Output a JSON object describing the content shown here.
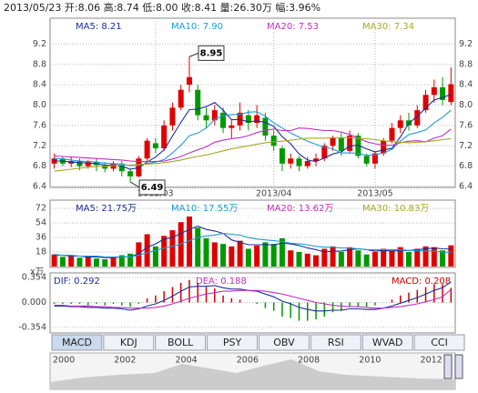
{
  "header": "2013/05/23 开:8.06 高:8.74 低:8.00 收:8.41 量:26.30万 幅:3.96%",
  "chart_data": [
    {
      "type": "candlestick",
      "legend": [
        {
          "label": "MA5: 8.21",
          "color": "#1a2f9a"
        },
        {
          "label": "MA10: 7.90",
          "color": "#1e9ad6"
        },
        {
          "label": "MA20: 7.53",
          "color": "#c030c0"
        },
        {
          "label": "MA30: 7.34",
          "color": "#a8a820"
        }
      ],
      "categories": [
        null,
        null,
        null,
        null,
        null,
        null,
        null,
        null,
        null,
        null,
        null,
        null,
        "2013/03",
        null,
        null,
        null,
        null,
        null,
        null,
        null,
        null,
        null,
        null,
        null,
        null,
        null,
        "2013/04",
        null,
        null,
        null,
        null,
        null,
        null,
        null,
        null,
        null,
        null,
        null,
        "2013/05",
        null,
        null,
        null,
        null,
        null,
        null,
        null,
        null,
        null
      ],
      "open": [
        6.85,
        6.95,
        6.85,
        6.9,
        6.8,
        6.88,
        6.82,
        6.75,
        6.85,
        6.7,
        6.6,
        6.95,
        7.25,
        7.15,
        7.6,
        7.95,
        8.4,
        8.3,
        7.8,
        7.7,
        7.85,
        7.55,
        7.6,
        7.8,
        7.65,
        7.75,
        7.4,
        7.15,
        6.85,
        6.95,
        6.8,
        6.9,
        6.95,
        7.2,
        7.35,
        7.1,
        7.4,
        7.0,
        6.85,
        7.05,
        7.3,
        7.55,
        7.7,
        7.6,
        7.9,
        8.2,
        8.35,
        8.06
      ],
      "close": [
        6.95,
        6.85,
        6.9,
        6.8,
        6.88,
        6.82,
        6.75,
        6.85,
        6.7,
        6.6,
        6.95,
        7.3,
        7.15,
        7.6,
        7.95,
        8.3,
        8.55,
        7.8,
        7.7,
        7.9,
        7.55,
        7.6,
        7.85,
        7.65,
        7.8,
        7.4,
        7.2,
        6.85,
        6.95,
        6.8,
        6.9,
        6.95,
        7.2,
        7.35,
        7.1,
        7.4,
        7.0,
        6.85,
        7.05,
        7.3,
        7.55,
        7.7,
        7.6,
        7.9,
        8.2,
        8.35,
        8.1,
        8.41
      ],
      "low": [
        6.75,
        6.8,
        6.78,
        6.72,
        6.75,
        6.7,
        6.68,
        6.7,
        6.6,
        6.49,
        6.58,
        6.9,
        7.05,
        7.1,
        7.5,
        7.9,
        8.25,
        7.7,
        7.55,
        7.6,
        7.45,
        7.35,
        7.5,
        7.5,
        7.55,
        7.3,
        7.1,
        6.7,
        6.75,
        6.7,
        6.75,
        6.8,
        6.9,
        7.1,
        7.0,
        7.05,
        6.95,
        6.8,
        6.75,
        7.0,
        7.25,
        7.45,
        7.5,
        7.55,
        7.85,
        8.05,
        8.0,
        8.0
      ],
      "high": [
        7.05,
        7.0,
        6.98,
        6.95,
        6.92,
        6.95,
        6.88,
        6.9,
        6.9,
        6.75,
        7.0,
        7.35,
        7.35,
        7.7,
        8.05,
        8.4,
        8.95,
        8.4,
        7.95,
        8.0,
        7.95,
        7.7,
        8.05,
        7.9,
        8.0,
        7.85,
        7.5,
        7.2,
        7.05,
        7.0,
        6.98,
        7.05,
        7.25,
        7.4,
        7.45,
        7.5,
        7.45,
        7.05,
        7.1,
        7.35,
        7.65,
        7.8,
        7.85,
        8.0,
        8.3,
        8.5,
        8.55,
        8.74
      ],
      "lines": [
        {
          "color": "#1a2f9a",
          "values": [
            6.9,
            6.9,
            6.88,
            6.87,
            6.86,
            6.85,
            6.82,
            6.82,
            6.8,
            6.74,
            6.77,
            6.88,
            6.98,
            7.12,
            7.39,
            7.66,
            7.91,
            7.92,
            7.97,
            8.05,
            7.9,
            7.71,
            7.72,
            7.67,
            7.69,
            7.66,
            7.58,
            7.38,
            7.24,
            7.04,
            6.92,
            6.89,
            6.96,
            7.04,
            7.08,
            7.2,
            7.21,
            7.14,
            7.08,
            7.12,
            7.15,
            7.37,
            7.64,
            7.78,
            7.94,
            8.1,
            8.15,
            8.21
          ]
        },
        {
          "color": "#1e9ad6",
          "values": [
            6.95,
            6.94,
            6.92,
            6.9,
            6.89,
            6.88,
            6.86,
            6.85,
            6.84,
            6.81,
            6.82,
            6.85,
            6.88,
            6.93,
            7.06,
            7.21,
            7.4,
            7.45,
            7.55,
            7.72,
            7.79,
            7.81,
            7.82,
            7.86,
            7.87,
            7.78,
            7.65,
            7.55,
            7.45,
            7.37,
            7.29,
            7.23,
            7.17,
            7.14,
            7.06,
            7.06,
            7.05,
            7.01,
            7.02,
            7.06,
            7.13,
            7.29,
            7.42,
            7.46,
            7.51,
            7.65,
            7.76,
            7.9
          ]
        },
        {
          "color": "#c030c0",
          "values": [
            7.0,
            6.99,
            6.98,
            6.97,
            6.96,
            6.95,
            6.94,
            6.93,
            6.92,
            6.9,
            6.89,
            6.89,
            6.89,
            6.9,
            6.94,
            6.99,
            7.06,
            7.12,
            7.18,
            7.27,
            7.31,
            7.34,
            7.36,
            7.4,
            7.46,
            7.5,
            7.53,
            7.5,
            7.5,
            7.55,
            7.54,
            7.52,
            7.5,
            7.5,
            7.47,
            7.42,
            7.35,
            7.28,
            7.24,
            7.21,
            7.21,
            7.26,
            7.29,
            7.3,
            7.28,
            7.35,
            7.4,
            7.53
          ]
        },
        {
          "color": "#a8a820",
          "values": [
            6.7,
            6.72,
            6.74,
            6.76,
            6.78,
            6.79,
            6.8,
            6.81,
            6.82,
            6.82,
            6.83,
            6.84,
            6.85,
            6.87,
            6.89,
            6.92,
            6.96,
            6.99,
            7.02,
            7.06,
            7.1,
            7.14,
            7.17,
            7.2,
            7.23,
            7.26,
            7.28,
            7.29,
            7.31,
            7.33,
            7.35,
            7.35,
            7.35,
            7.36,
            7.36,
            7.36,
            7.35,
            7.34,
            7.32,
            7.3,
            7.28,
            7.27,
            7.26,
            7.27,
            7.28,
            7.3,
            7.32,
            7.34
          ]
        }
      ],
      "ylim": [
        6.4,
        9.35
      ],
      "yticks": [
        6.4,
        6.8,
        7.2,
        7.6,
        {
          "value": 8,
          "label": "8.0"
        },
        8.4,
        8.8,
        9.2
      ],
      "up_color": "#e00000",
      "down_color": "#009900",
      "grid": true
    },
    {
      "type": "bar",
      "legend": [
        {
          "label": "MA5: 21.75万",
          "color": "#1a2f9a"
        },
        {
          "label": "MA10: 17.55万",
          "color": "#1e9ad6"
        },
        {
          "label": "MA20: 13.62万",
          "color": "#c030c0"
        },
        {
          "label": "MA30: 10.83万",
          "color": "#a8a820"
        }
      ],
      "unit_label": "x万",
      "values": [
        15,
        12,
        14,
        11,
        13,
        10,
        9,
        12,
        14,
        16,
        30,
        40,
        25,
        38,
        45,
        55,
        62,
        48,
        35,
        30,
        28,
        25,
        32,
        22,
        26,
        30,
        28,
        35,
        20,
        18,
        16,
        14,
        22,
        25,
        18,
        24,
        20,
        15,
        18,
        22,
        20,
        24,
        18,
        22,
        25,
        24,
        20,
        26.3
      ],
      "lines": [
        {
          "color": "#1a2f9a",
          "values": [
            14,
            14,
            13,
            13,
            12,
            12,
            11,
            11,
            12,
            12,
            16,
            24,
            28,
            34,
            36,
            41,
            46,
            50,
            46,
            44,
            41,
            33,
            30,
            27,
            27,
            27,
            27,
            29,
            28,
            26,
            23,
            21,
            18,
            19,
            19,
            21,
            22,
            21,
            19,
            20,
            19,
            20,
            20,
            21,
            22,
            23,
            22,
            21.75
          ]
        },
        {
          "color": "#1e9ad6",
          "values": [
            15,
            14,
            14,
            13,
            13,
            13,
            12,
            12,
            12,
            12,
            14,
            17,
            20,
            23,
            25,
            28,
            32,
            36,
            38,
            39,
            41,
            40,
            39,
            36,
            34,
            33,
            32,
            31,
            29,
            28,
            27,
            25,
            24,
            24,
            23,
            23,
            22,
            21,
            21,
            21,
            21,
            21,
            20,
            20,
            19,
            19,
            18,
            17.55
          ]
        }
      ],
      "ylim": [
        0,
        80
      ],
      "yticks": [
        18,
        36,
        54,
        72
      ],
      "grid": true
    },
    {
      "type": "macd",
      "legend": [
        {
          "label": "DIF: 0.292",
          "color": "#1a2f9a"
        },
        {
          "label": "DEA: 0.188",
          "color": "#c030c0"
        },
        {
          "label": "MACD: 0.208",
          "color": "#d00000"
        }
      ],
      "dif": [
        -0.05,
        -0.05,
        -0.06,
        -0.06,
        -0.07,
        -0.07,
        -0.08,
        -0.08,
        -0.09,
        -0.11,
        -0.09,
        -0.05,
        -0.02,
        0.03,
        0.09,
        0.16,
        0.22,
        0.23,
        0.23,
        0.24,
        0.21,
        0.19,
        0.19,
        0.17,
        0.16,
        0.12,
        0.08,
        0.02,
        -0.02,
        -0.07,
        -0.1,
        -0.12,
        -0.12,
        -0.11,
        -0.11,
        -0.09,
        -0.09,
        -0.1,
        -0.1,
        -0.08,
        -0.05,
        -0.01,
        0.03,
        0.07,
        0.12,
        0.17,
        0.21,
        0.292
      ],
      "dea": [
        -0.04,
        -0.04,
        -0.05,
        -0.05,
        -0.05,
        -0.06,
        -0.06,
        -0.07,
        -0.07,
        -0.08,
        -0.08,
        -0.08,
        -0.07,
        -0.05,
        -0.02,
        0.02,
        0.06,
        0.09,
        0.12,
        0.14,
        0.16,
        0.16,
        0.17,
        0.17,
        0.17,
        0.16,
        0.14,
        0.12,
        0.09,
        0.06,
        0.03,
        0.0,
        -0.02,
        -0.04,
        -0.05,
        -0.06,
        -0.06,
        -0.07,
        -0.08,
        -0.08,
        -0.07,
        -0.06,
        -0.04,
        -0.02,
        0.01,
        0.04,
        0.08,
        0.188
      ],
      "hist": [
        -0.02,
        -0.02,
        -0.02,
        -0.02,
        -0.04,
        -0.02,
        -0.04,
        -0.02,
        -0.04,
        -0.06,
        -0.02,
        0.06,
        0.1,
        0.16,
        0.22,
        0.28,
        0.32,
        0.28,
        0.22,
        0.2,
        0.1,
        0.06,
        0.04,
        0.0,
        -0.02,
        -0.08,
        -0.12,
        -0.2,
        -0.22,
        -0.26,
        -0.26,
        -0.24,
        -0.2,
        -0.14,
        -0.12,
        -0.06,
        -0.06,
        -0.06,
        -0.04,
        0.0,
        0.04,
        0.1,
        0.14,
        0.18,
        0.22,
        0.26,
        0.26,
        0.208
      ],
      "ylim": [
        -0.42,
        0.42
      ],
      "yticks": [
        0.354,
        {
          "value": 0,
          "label": "0.000"
        },
        -0.354
      ],
      "up_color": "#d00000",
      "down_color": "#009900",
      "grid": true
    }
  ],
  "tabs": [
    "MACD",
    "KDJ",
    "BOLL",
    "PSY",
    "OBV",
    "RSI",
    "WVAD",
    "CCI"
  ],
  "timeline": [
    "2000",
    "2002",
    "2004",
    "2006",
    "2008",
    "2010",
    "2012"
  ]
}
